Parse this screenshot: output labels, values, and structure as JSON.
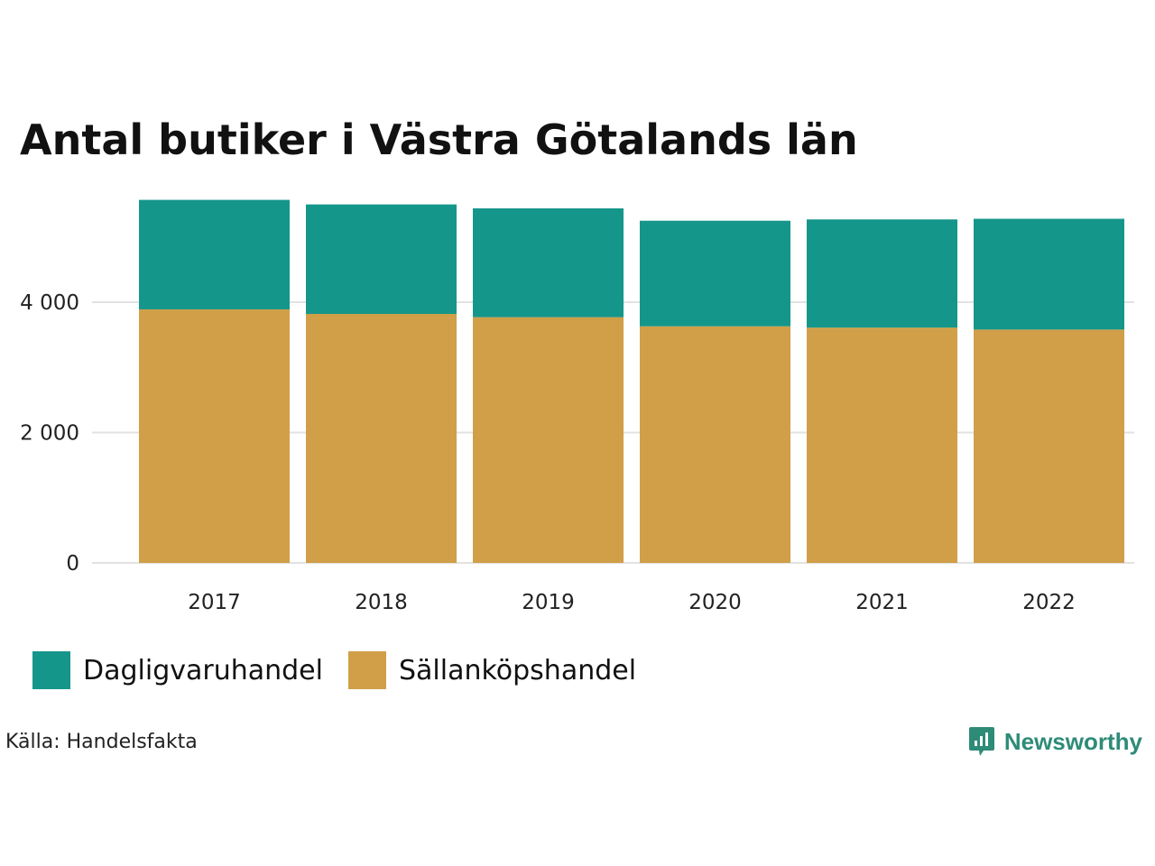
{
  "chart_data": {
    "type": "bar",
    "stacked": true,
    "title": "Antal butiker i Västra Götalands län",
    "xlabel": "",
    "ylabel": "",
    "categories": [
      "2017",
      "2018",
      "2019",
      "2020",
      "2021",
      "2022"
    ],
    "series": [
      {
        "name": "Sällanköpshandel",
        "color": "#d09f48",
        "values": [
          3890,
          3820,
          3770,
          3630,
          3610,
          3580
        ]
      },
      {
        "name": "Dagligvaruhandel",
        "color": "#15968a",
        "values": [
          1680,
          1680,
          1670,
          1620,
          1660,
          1700
        ]
      }
    ],
    "yticks": [
      0,
      2000,
      4000
    ],
    "ytick_labels": [
      "0",
      "2 000",
      "4 000"
    ],
    "ylim": [
      0,
      5700
    ],
    "grid": true,
    "legend_position": "bottom-left",
    "legend_order": [
      "Dagligvaruhandel",
      "Sällanköpshandel"
    ]
  },
  "source": "Källa: Handelsfakta",
  "brand": {
    "name": "Newsworthy",
    "icon": "newsworthy-logo-icon"
  }
}
